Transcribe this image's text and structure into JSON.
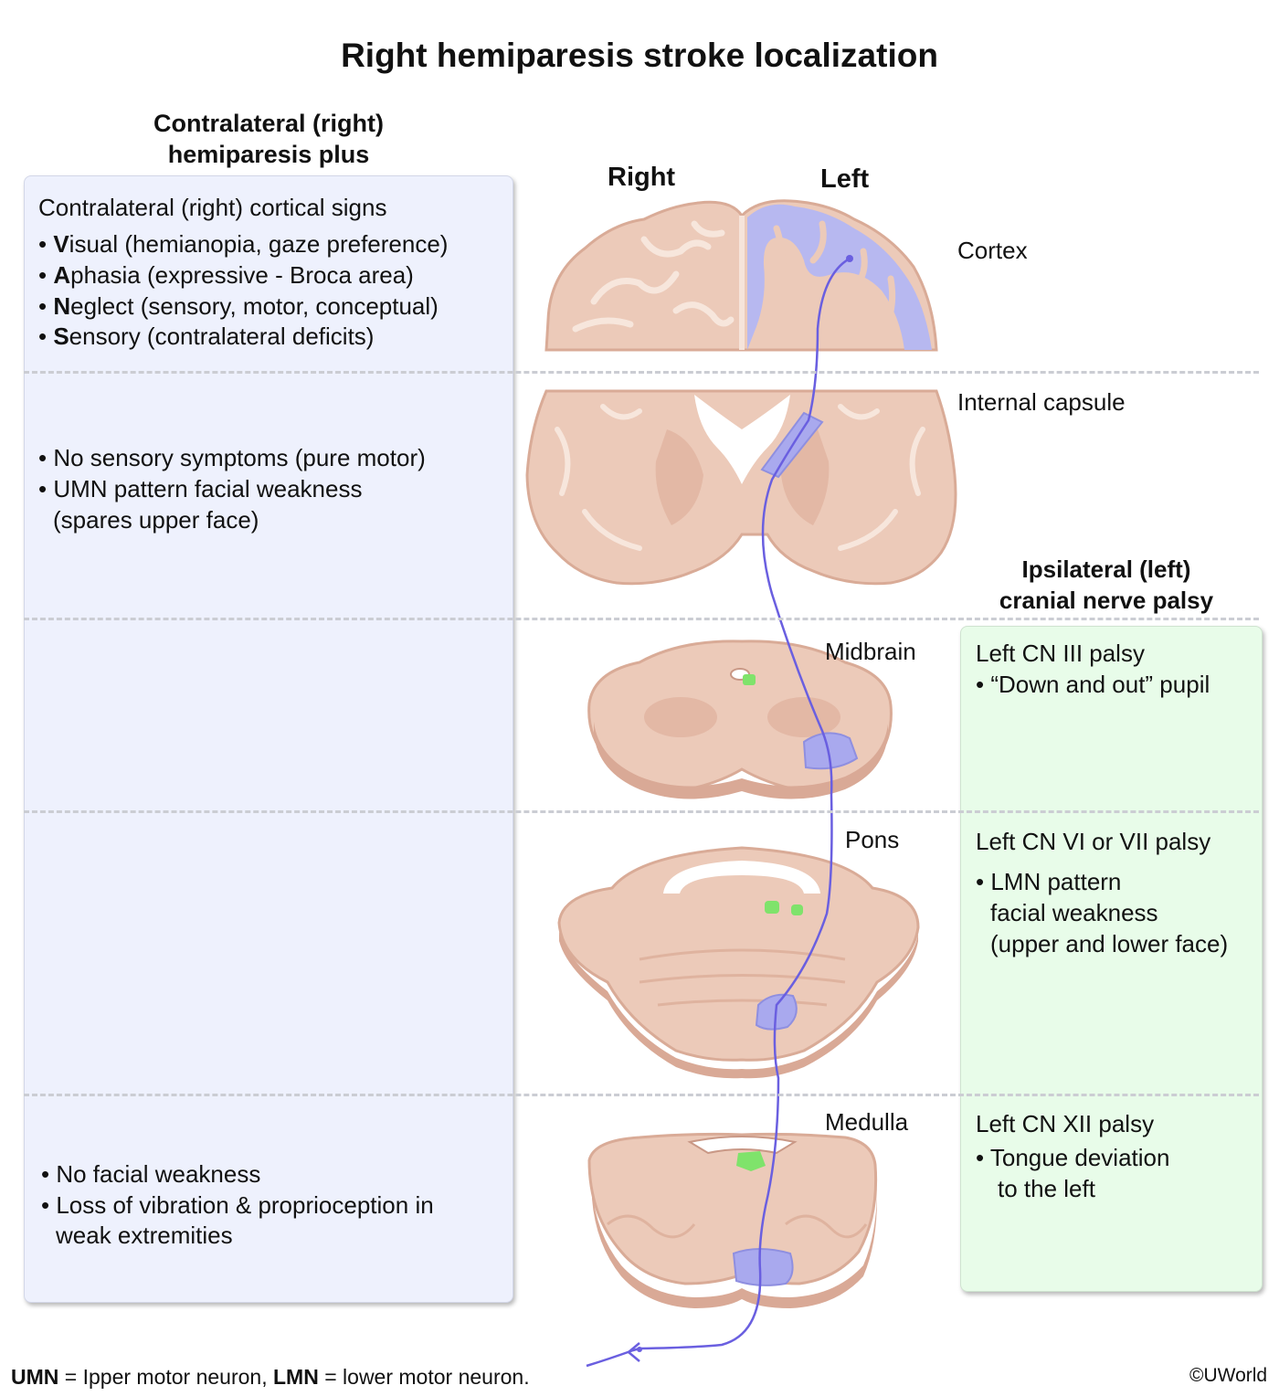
{
  "title": "Right hemiparesis stroke localization",
  "left_header": {
    "line1": "Contralateral (right)",
    "line2": "hemiparesis plus"
  },
  "right_header": {
    "line1": "Ipsilateral (left)",
    "line2": "cranial nerve palsy"
  },
  "side_labels": {
    "right": "Right",
    "left": "Left"
  },
  "levels": {
    "cortex": "Cortex",
    "internal_capsule": "Internal capsule",
    "midbrain": "Midbrain",
    "pons": "Pons",
    "medulla": "Medulla"
  },
  "left_panel": {
    "cortex": {
      "heading": "Contralateral (right) cortical signs",
      "items": [
        {
          "bold": "V",
          "rest": "isual (hemianopia, gaze preference)"
        },
        {
          "bold": "A",
          "rest": "phasia (expressive - Broca area)"
        },
        {
          "bold": "N",
          "rest": "eglect (sensory, motor, conceptual)"
        },
        {
          "bold": "S",
          "rest": "ensory (contralateral deficits)"
        }
      ]
    },
    "capsule": {
      "item1": "No sensory symptoms (pure motor)",
      "item2": "UMN pattern facial weakness",
      "item2_cont": "(spares upper face)"
    },
    "medulla": {
      "item1": "No facial weakness",
      "item2": "Loss of vibration & proprioception in",
      "item2_cont": "weak extremities"
    }
  },
  "right_panel": {
    "midbrain": {
      "heading": "Left CN III palsy",
      "item": "“Down and out” pupil"
    },
    "pons": {
      "heading": "Left CN VI or VII palsy",
      "item": "LMN pattern",
      "item_cont1": "facial weakness",
      "item_cont2": "(upper and lower face)"
    },
    "medulla": {
      "heading": "Left CN XII palsy",
      "item": "Tongue deviation",
      "item_cont": "to the left"
    }
  },
  "footer": {
    "umn_abbr": "UMN",
    "umn_def": " = Ipper motor neuron, ",
    "lmn_abbr": "LMN",
    "lmn_def": " = lower motor neuron."
  },
  "copyright": "©UWorld",
  "colors": {
    "left_panel_bg": "#eef1fd",
    "right_panel_bg": "#e8fce9",
    "tissue": "#eccab9",
    "tissue_dark": "#d9ab97",
    "lesion": "#a9a9ee",
    "nucleus": "#7fe36b",
    "tract": "#6a5fe0"
  }
}
